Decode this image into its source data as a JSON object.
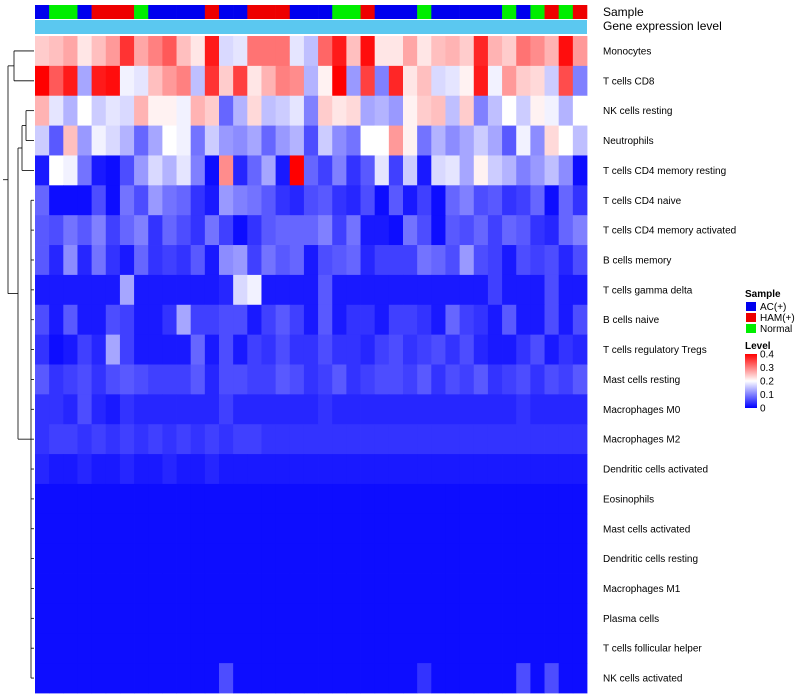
{
  "chart_data": {
    "type": "heatmap",
    "title": "",
    "annotation_tracks": [
      "Sample",
      "Gene expression level"
    ],
    "rows": [
      "Monocytes",
      "T cells CD8",
      "NK cells resting",
      "Neutrophils",
      "T cells CD4 memory resting",
      "T cells CD4 naive",
      "T cells CD4 memory activated",
      "B cells memory",
      "T cells gamma delta",
      "B cells naive",
      "T cells regulatory  Tregs",
      "Mast cells resting",
      "Macrophages M0",
      "Macrophages M2",
      "Dendritic cells activated",
      "Eosinophils",
      "Mast cells activated",
      "Dendritic cells resting",
      "Macrophages M1",
      "Plasma cells",
      "T cells follicular helper",
      "NK cells activated"
    ],
    "sample_groups": [
      "AC",
      "NO",
      "NO",
      "AC",
      "HAM",
      "HAM",
      "HAM",
      "NO",
      "AC",
      "AC",
      "AC",
      "AC",
      "HAM",
      "AC",
      "AC",
      "HAM",
      "HAM",
      "HAM",
      "AC",
      "AC",
      "AC",
      "NO",
      "NO",
      "HAM",
      "AC",
      "AC",
      "AC",
      "NO",
      "AC",
      "AC",
      "AC",
      "AC",
      "AC",
      "NO",
      "AC",
      "NO",
      "HAM",
      "NO",
      "HAM"
    ],
    "values": [
      [
        0.24,
        0.25,
        0.27,
        0.22,
        0.25,
        0.28,
        0.36,
        0.27,
        0.3,
        0.33,
        0.25,
        0.22,
        0.38,
        0.17,
        0.18,
        0.31,
        0.31,
        0.31,
        0.18,
        0.15,
        0.32,
        0.38,
        0.25,
        0.39,
        0.22,
        0.22,
        0.27,
        0.22,
        0.25,
        0.26,
        0.24,
        0.37,
        0.26,
        0.24,
        0.31,
        0.29,
        0.26,
        0.39,
        0.28
      ],
      [
        0.4,
        0.33,
        0.38,
        0.13,
        0.38,
        0.39,
        0.19,
        0.18,
        0.25,
        0.28,
        0.3,
        0.15,
        0.36,
        0.24,
        0.35,
        0.22,
        0.26,
        0.3,
        0.29,
        0.14,
        0.21,
        0.4,
        0.12,
        0.35,
        0.1,
        0.37,
        0.22,
        0.25,
        0.17,
        0.18,
        0.21,
        0.38,
        0.19,
        0.28,
        0.24,
        0.23,
        0.16,
        0.34,
        0.1
      ],
      [
        0.26,
        0.18,
        0.14,
        0.2,
        0.16,
        0.18,
        0.17,
        0.26,
        0.21,
        0.21,
        0.19,
        0.26,
        0.24,
        0.08,
        0.14,
        0.23,
        0.15,
        0.16,
        0.18,
        0.1,
        0.24,
        0.22,
        0.23,
        0.13,
        0.14,
        0.12,
        0.21,
        0.24,
        0.25,
        0.15,
        0.24,
        0.1,
        0.15,
        0.2,
        0.16,
        0.21,
        0.19,
        0.14,
        0.2
      ],
      [
        0.16,
        0.07,
        0.25,
        0.12,
        0.19,
        0.17,
        0.14,
        0.08,
        0.13,
        0.2,
        0.19,
        0.09,
        0.16,
        0.12,
        0.11,
        0.13,
        0.08,
        0.12,
        0.14,
        0.06,
        0.16,
        0.11,
        0.09,
        0.2,
        0.2,
        0.28,
        0.21,
        0.09,
        0.14,
        0.11,
        0.13,
        0.16,
        0.13,
        0.07,
        0.19,
        0.11,
        0.23,
        0.2,
        0.15
      ],
      [
        0.02,
        0.2,
        0.19,
        0.09,
        0.02,
        0.01,
        0.06,
        0.12,
        0.17,
        0.14,
        0.18,
        0.1,
        0.01,
        0.29,
        0.03,
        0.08,
        0.13,
        0.02,
        0.4,
        0.08,
        0.05,
        0.1,
        0.04,
        0.07,
        0.18,
        0.05,
        0.16,
        0.02,
        0.17,
        0.18,
        0.13,
        0.21,
        0.16,
        0.14,
        0.1,
        0.12,
        0.15,
        0.11,
        0.01
      ],
      [
        0.08,
        0.01,
        0.01,
        0.01,
        0.06,
        0.01,
        0.09,
        0.06,
        0.12,
        0.09,
        0.08,
        0.04,
        0.02,
        0.12,
        0.1,
        0.09,
        0.07,
        0.04,
        0.03,
        0.06,
        0.07,
        0.04,
        0.03,
        0.06,
        0.01,
        0.07,
        0.02,
        0.05,
        0.01,
        0.08,
        0.1,
        0.06,
        0.07,
        0.04,
        0.05,
        0.08,
        0.01,
        0.08,
        0.04
      ],
      [
        0.07,
        0.06,
        0.09,
        0.07,
        0.1,
        0.05,
        0.08,
        0.1,
        0.04,
        0.08,
        0.06,
        0.04,
        0.09,
        0.05,
        0.01,
        0.04,
        0.07,
        0.08,
        0.08,
        0.08,
        0.1,
        0.05,
        0.09,
        0.02,
        0.02,
        0.01,
        0.09,
        0.06,
        0.01,
        0.07,
        0.06,
        0.08,
        0.05,
        0.08,
        0.07,
        0.04,
        0.03,
        0.08,
        0.1
      ],
      [
        0.07,
        0.03,
        0.11,
        0.03,
        0.09,
        0.04,
        0.02,
        0.08,
        0.04,
        0.05,
        0.04,
        0.07,
        0.02,
        0.11,
        0.12,
        0.05,
        0.09,
        0.07,
        0.08,
        0.02,
        0.06,
        0.07,
        0.08,
        0.03,
        0.05,
        0.05,
        0.05,
        0.09,
        0.08,
        0.06,
        0.12,
        0.06,
        0.05,
        0.02,
        0.06,
        0.05,
        0.06,
        0.03,
        0.06
      ],
      [
        0.02,
        0.02,
        0.02,
        0.02,
        0.02,
        0.02,
        0.13,
        0.02,
        0.02,
        0.02,
        0.02,
        0.02,
        0.02,
        0.03,
        0.17,
        0.19,
        0.02,
        0.02,
        0.02,
        0.02,
        0.07,
        0.02,
        0.02,
        0.02,
        0.02,
        0.02,
        0.02,
        0.02,
        0.02,
        0.02,
        0.02,
        0.02,
        0.05,
        0.02,
        0.02,
        0.02,
        0.06,
        0.02,
        0.02
      ],
      [
        0.06,
        0.02,
        0.07,
        0.02,
        0.02,
        0.06,
        0.05,
        0.02,
        0.02,
        0.04,
        0.13,
        0.05,
        0.05,
        0.06,
        0.06,
        0.02,
        0.05,
        0.07,
        0.05,
        0.02,
        0.07,
        0.02,
        0.04,
        0.04,
        0.02,
        0.05,
        0.05,
        0.04,
        0.02,
        0.08,
        0.05,
        0.04,
        0.02,
        0.07,
        0.02,
        0.02,
        0.06,
        0.02,
        0.06
      ],
      [
        0.04,
        0.01,
        0.02,
        0.05,
        0.03,
        0.13,
        0.05,
        0.02,
        0.02,
        0.02,
        0.02,
        0.08,
        0.02,
        0.06,
        0.02,
        0.05,
        0.04,
        0.06,
        0.04,
        0.04,
        0.06,
        0.04,
        0.04,
        0.03,
        0.05,
        0.06,
        0.04,
        0.05,
        0.06,
        0.04,
        0.06,
        0.03,
        0.02,
        0.02,
        0.04,
        0.06,
        0.02,
        0.04,
        0.03
      ],
      [
        0.07,
        0.04,
        0.05,
        0.06,
        0.04,
        0.06,
        0.07,
        0.06,
        0.05,
        0.05,
        0.05,
        0.07,
        0.03,
        0.06,
        0.06,
        0.05,
        0.05,
        0.07,
        0.06,
        0.04,
        0.05,
        0.07,
        0.04,
        0.05,
        0.06,
        0.06,
        0.05,
        0.07,
        0.04,
        0.06,
        0.05,
        0.07,
        0.04,
        0.05,
        0.06,
        0.04,
        0.06,
        0.05,
        0.07
      ],
      [
        0.04,
        0.04,
        0.03,
        0.06,
        0.03,
        0.02,
        0.04,
        0.03,
        0.03,
        0.03,
        0.03,
        0.03,
        0.03,
        0.05,
        0.03,
        0.03,
        0.03,
        0.03,
        0.03,
        0.03,
        0.04,
        0.03,
        0.03,
        0.03,
        0.03,
        0.03,
        0.03,
        0.03,
        0.03,
        0.03,
        0.03,
        0.03,
        0.03,
        0.03,
        0.04,
        0.03,
        0.03,
        0.03,
        0.03
      ],
      [
        0.04,
        0.05,
        0.05,
        0.04,
        0.05,
        0.04,
        0.05,
        0.04,
        0.05,
        0.04,
        0.05,
        0.04,
        0.05,
        0.04,
        0.05,
        0.05,
        0.04,
        0.04,
        0.04,
        0.04,
        0.04,
        0.04,
        0.04,
        0.04,
        0.04,
        0.04,
        0.04,
        0.04,
        0.04,
        0.04,
        0.04,
        0.04,
        0.04,
        0.04,
        0.04,
        0.04,
        0.04,
        0.04,
        0.04
      ],
      [
        0.03,
        0.02,
        0.02,
        0.03,
        0.02,
        0.02,
        0.03,
        0.02,
        0.02,
        0.03,
        0.02,
        0.02,
        0.03,
        0.02,
        0.02,
        0.02,
        0.02,
        0.02,
        0.02,
        0.02,
        0.02,
        0.02,
        0.02,
        0.02,
        0.02,
        0.02,
        0.02,
        0.02,
        0.02,
        0.02,
        0.02,
        0.02,
        0.02,
        0.02,
        0.02,
        0.02,
        0.02,
        0.02,
        0.02
      ],
      [
        0.01,
        0.01,
        0.01,
        0.01,
        0.01,
        0.01,
        0.01,
        0.01,
        0.01,
        0.01,
        0.01,
        0.01,
        0.01,
        0.01,
        0.01,
        0.01,
        0.01,
        0.01,
        0.01,
        0.01,
        0.01,
        0.01,
        0.01,
        0.01,
        0.01,
        0.01,
        0.01,
        0.01,
        0.01,
        0.01,
        0.01,
        0.01,
        0.01,
        0.01,
        0.01,
        0.01,
        0.01,
        0.01,
        0.01
      ],
      [
        0.01,
        0.01,
        0.01,
        0.01,
        0.01,
        0.01,
        0.01,
        0.01,
        0.01,
        0.01,
        0.01,
        0.01,
        0.01,
        0.01,
        0.01,
        0.01,
        0.01,
        0.01,
        0.01,
        0.01,
        0.01,
        0.01,
        0.01,
        0.01,
        0.01,
        0.01,
        0.01,
        0.01,
        0.01,
        0.01,
        0.01,
        0.01,
        0.01,
        0.01,
        0.01,
        0.01,
        0.01,
        0.01,
        0.01
      ],
      [
        0.01,
        0.01,
        0.01,
        0.01,
        0.01,
        0.01,
        0.01,
        0.01,
        0.01,
        0.01,
        0.01,
        0.01,
        0.01,
        0.01,
        0.01,
        0.01,
        0.01,
        0.01,
        0.01,
        0.01,
        0.01,
        0.01,
        0.01,
        0.01,
        0.01,
        0.01,
        0.01,
        0.01,
        0.01,
        0.01,
        0.01,
        0.01,
        0.01,
        0.01,
        0.01,
        0.01,
        0.01,
        0.01,
        0.01
      ],
      [
        0.01,
        0.01,
        0.01,
        0.01,
        0.01,
        0.01,
        0.01,
        0.01,
        0.01,
        0.01,
        0.01,
        0.01,
        0.01,
        0.01,
        0.01,
        0.01,
        0.01,
        0.01,
        0.01,
        0.01,
        0.01,
        0.01,
        0.01,
        0.01,
        0.01,
        0.01,
        0.01,
        0.01,
        0.01,
        0.01,
        0.01,
        0.01,
        0.01,
        0.01,
        0.01,
        0.01,
        0.01,
        0.01,
        0.01
      ],
      [
        0.01,
        0.01,
        0.01,
        0.01,
        0.01,
        0.01,
        0.01,
        0.01,
        0.01,
        0.01,
        0.01,
        0.01,
        0.01,
        0.01,
        0.01,
        0.01,
        0.01,
        0.01,
        0.01,
        0.01,
        0.01,
        0.01,
        0.01,
        0.01,
        0.01,
        0.01,
        0.01,
        0.01,
        0.01,
        0.01,
        0.01,
        0.01,
        0.01,
        0.01,
        0.01,
        0.01,
        0.01,
        0.01,
        0.01
      ],
      [
        0.01,
        0.01,
        0.01,
        0.01,
        0.01,
        0.01,
        0.01,
        0.01,
        0.01,
        0.01,
        0.01,
        0.01,
        0.01,
        0.01,
        0.01,
        0.01,
        0.01,
        0.01,
        0.01,
        0.01,
        0.01,
        0.01,
        0.01,
        0.01,
        0.01,
        0.01,
        0.01,
        0.01,
        0.01,
        0.01,
        0.01,
        0.01,
        0.01,
        0.01,
        0.01,
        0.01,
        0.01,
        0.01,
        0.01
      ],
      [
        0.01,
        0.01,
        0.01,
        0.01,
        0.01,
        0.01,
        0.01,
        0.01,
        0.01,
        0.01,
        0.01,
        0.01,
        0.01,
        0.06,
        0.01,
        0.01,
        0.01,
        0.01,
        0.01,
        0.01,
        0.01,
        0.01,
        0.01,
        0.01,
        0.01,
        0.01,
        0.01,
        0.04,
        0.01,
        0.01,
        0.01,
        0.01,
        0.01,
        0.01,
        0.06,
        0.01,
        0.06,
        0.01,
        0.01
      ]
    ],
    "color_scale": {
      "min": 0,
      "mid": 0.2,
      "max": 0.4,
      "low": "#0000ff",
      "middle": "#ffffff",
      "high": "#ff0000"
    },
    "legend": {
      "sample_title": "Sample",
      "sample_items": [
        {
          "key": "AC",
          "label": "AC(+)",
          "color": "#0000ee"
        },
        {
          "key": "HAM",
          "label": "HAM(+)",
          "color": "#ee0000"
        },
        {
          "key": "NO",
          "label": "Normal",
          "color": "#00ee00"
        }
      ],
      "level_title": "Level",
      "level_ticks": [
        {
          "value": 0.4,
          "label": "0.4"
        },
        {
          "value": 0.3,
          "label": "0.3"
        },
        {
          "value": 0.2,
          "label": "0.2"
        },
        {
          "value": 0.1,
          "label": "0.1"
        },
        {
          "value": 0,
          "label": "0"
        }
      ],
      "placement": "right"
    },
    "expression_track_color": "#5bc8f0"
  }
}
